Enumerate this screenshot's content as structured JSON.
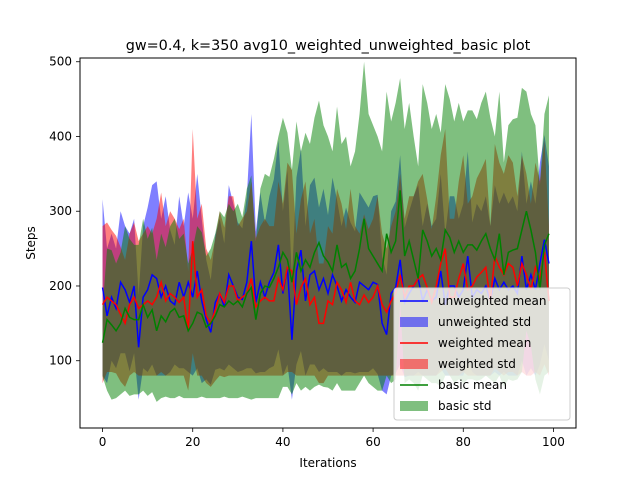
{
  "chart_data": {
    "type": "line",
    "title": "gw=0.4, k=350 avg10_weighted_unweighted_basic plot",
    "xlabel": "Iterations",
    "ylabel": "Steps",
    "xlim": [
      -5,
      105
    ],
    "ylim": [
      10,
      505
    ],
    "xticks": [
      0,
      20,
      40,
      60,
      80,
      100
    ],
    "yticks": [
      100,
      200,
      300,
      400,
      500
    ],
    "legend_position": "lower-right",
    "x": [
      0,
      1,
      2,
      3,
      4,
      5,
      6,
      7,
      8,
      9,
      10,
      11,
      12,
      13,
      14,
      15,
      16,
      17,
      18,
      19,
      20,
      21,
      22,
      23,
      24,
      25,
      26,
      27,
      28,
      29,
      30,
      31,
      32,
      33,
      34,
      35,
      36,
      37,
      38,
      39,
      40,
      41,
      42,
      43,
      44,
      45,
      46,
      47,
      48,
      49,
      50,
      51,
      52,
      53,
      54,
      55,
      56,
      57,
      58,
      59,
      60,
      61,
      62,
      63,
      64,
      65,
      66,
      67,
      68,
      69,
      70,
      71,
      72,
      73,
      74,
      75,
      76,
      77,
      78,
      79,
      80,
      81,
      82,
      83,
      84,
      85,
      86,
      87,
      88,
      89,
      90,
      91,
      92,
      93,
      94,
      95,
      96,
      97,
      98,
      99
    ],
    "series": [
      {
        "name": "unweighted mean",
        "std_name": "unweighted std",
        "color": "#0000ff",
        "mean": [
          198,
          160,
          185,
          170,
          205,
          195,
          178,
          200,
          118,
          185,
          195,
          215,
          210,
          185,
          200,
          180,
          175,
          205,
          185,
          205,
          185,
          220,
          180,
          155,
          138,
          178,
          190,
          172,
          215,
          200,
          185,
          182,
          205,
          260,
          178,
          205,
          185,
          205,
          218,
          255,
          190,
          225,
          128,
          220,
          248,
          180,
          215,
          220,
          195,
          210,
          190,
          215,
          200,
          180,
          195,
          185,
          178,
          205,
          200,
          195,
          205,
          202,
          150,
          135,
          190,
          198,
          235,
          178,
          190,
          200,
          210,
          180,
          195,
          180,
          185,
          220,
          175,
          200,
          200,
          185,
          195,
          240,
          185,
          195,
          190,
          200,
          180,
          210,
          195,
          205,
          195,
          200,
          190,
          240,
          195,
          215,
          195,
          230,
          262,
          230
        ],
        "std": [
          118,
          90,
          85,
          80,
          95,
          85,
          92,
          90,
          70,
          95,
          110,
          120,
          130,
          105,
          120,
          95,
          80,
          115,
          95,
          120,
          105,
          130,
          110,
          80,
          70,
          90,
          100,
          85,
          120,
          110,
          100,
          95,
          115,
          170,
          95,
          120,
          100,
          115,
          125,
          140,
          110,
          130,
          80,
          125,
          135,
          100,
          120,
          125,
          110,
          120,
          105,
          130,
          115,
          100,
          110,
          100,
          95,
          120,
          115,
          110,
          115,
          120,
          90,
          80,
          110,
          115,
          140,
          100,
          110,
          120,
          125,
          100,
          115,
          100,
          105,
          130,
          95,
          120,
          120,
          105,
          115,
          140,
          100,
          115,
          110,
          120,
          100,
          125,
          115,
          120,
          115,
          120,
          110,
          140,
          115,
          125,
          115,
          135,
          140,
          130
        ]
      },
      {
        "name": "weighted mean",
        "std_name": "weighted std",
        "color": "#ff0000",
        "mean": [
          175,
          185,
          180,
          175,
          162,
          150,
          175,
          185,
          170,
          175,
          180,
          175,
          185,
          205,
          180,
          190,
          185,
          178,
          185,
          140,
          260,
          185,
          195,
          160,
          150,
          168,
          190,
          178,
          200,
          200,
          180,
          185,
          190,
          210,
          172,
          180,
          185,
          180,
          180,
          210,
          195,
          225,
          220,
          175,
          198,
          210,
          175,
          185,
          150,
          150,
          180,
          175,
          205,
          195,
          178,
          205,
          180,
          175,
          188,
          178,
          185,
          200,
          175,
          165,
          180,
          190,
          215,
          185,
          200,
          200,
          210,
          215,
          198,
          178,
          200,
          230,
          250,
          185,
          185,
          210,
          230,
          195,
          200,
          212,
          218,
          225,
          180,
          240,
          225,
          215,
          230,
          225,
          200,
          230,
          215,
          195,
          225,
          210,
          245,
          180
        ],
        "std": [
          105,
          100,
          95,
          92,
          90,
          85,
          95,
          100,
          90,
          95,
          100,
          95,
          105,
          120,
          100,
          110,
          105,
          98,
          105,
          80,
          150,
          105,
          115,
          90,
          85,
          95,
          110,
          100,
          120,
          120,
          100,
          105,
          110,
          130,
          92,
          100,
          105,
          100,
          100,
          130,
          115,
          140,
          135,
          95,
          118,
          130,
          95,
          105,
          80,
          80,
          100,
          95,
          125,
          115,
          98,
          125,
          100,
          95,
          108,
          98,
          105,
          120,
          95,
          85,
          100,
          110,
          135,
          105,
          120,
          120,
          130,
          135,
          118,
          98,
          120,
          145,
          160,
          105,
          105,
          130,
          145,
          115,
          120,
          132,
          138,
          145,
          100,
          150,
          140,
          135,
          145,
          140,
          120,
          145,
          135,
          115,
          140,
          130,
          150,
          100
        ]
      },
      {
        "name": "basic mean",
        "std_name": "basic std",
        "color": "#008000",
        "mean": [
          124,
          155,
          148,
          140,
          150,
          170,
          158,
          155,
          155,
          175,
          158,
          168,
          140,
          160,
          152,
          165,
          170,
          158,
          160,
          140,
          150,
          165,
          162,
          145,
          150,
          160,
          175,
          172,
          180,
          175,
          180,
          172,
          190,
          198,
          155,
          190,
          200,
          198,
          210,
          225,
          245,
          235,
          205,
          245,
          220,
          235,
          225,
          245,
          258,
          240,
          232,
          220,
          255,
          225,
          230,
          210,
          220,
          250,
          290,
          250,
          240,
          230,
          220,
          270,
          245,
          260,
          328,
          240,
          260,
          235,
          210,
          275,
          260,
          240,
          250,
          235,
          275,
          265,
          245,
          260,
          245,
          255,
          255,
          248,
          260,
          270,
          250,
          235,
          270,
          215,
          245,
          248,
          250,
          275,
          300,
          275,
          245,
          195,
          255,
          270
        ],
        "std": [
          45,
          95,
          100,
          90,
          95,
          110,
          105,
          100,
          100,
          115,
          105,
          110,
          95,
          110,
          100,
          115,
          120,
          105,
          110,
          90,
          100,
          115,
          110,
          95,
          100,
          110,
          125,
          120,
          130,
          125,
          130,
          120,
          140,
          150,
          105,
          140,
          150,
          148,
          160,
          175,
          180,
          170,
          150,
          175,
          160,
          170,
          165,
          180,
          190,
          175,
          168,
          160,
          185,
          165,
          170,
          150,
          160,
          180,
          210,
          180,
          175,
          170,
          160,
          190,
          175,
          185,
          150,
          170,
          185,
          165,
          150,
          195,
          185,
          170,
          180,
          170,
          195,
          185,
          175,
          185,
          175,
          180,
          180,
          175,
          185,
          190,
          175,
          165,
          190,
          150,
          170,
          175,
          175,
          190,
          160,
          155,
          170,
          140,
          175,
          185
        ]
      }
    ]
  }
}
